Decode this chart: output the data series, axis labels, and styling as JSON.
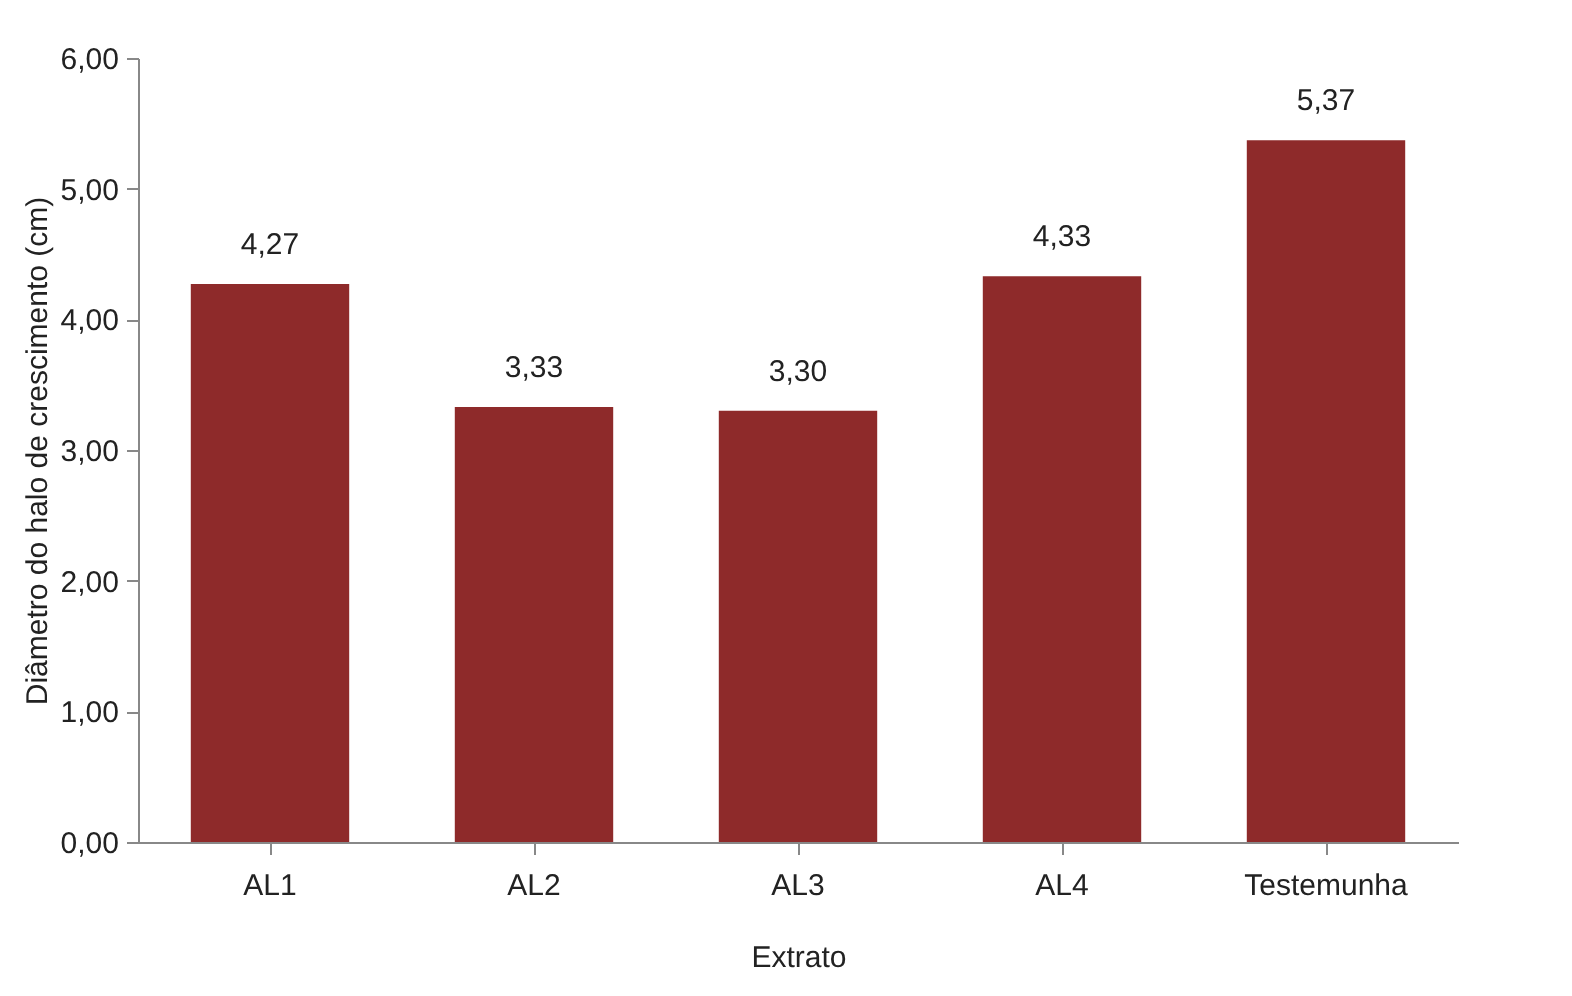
{
  "chart_data": {
    "type": "bar",
    "xlabel": "Extrato",
    "ylabel": "Diâmetro do halo de crescimento (cm)",
    "categories": [
      "AL1",
      "AL2",
      "AL3",
      "AL4",
      "Testemunha"
    ],
    "values": [
      4.27,
      3.33,
      3.3,
      4.33,
      5.37
    ],
    "value_labels": [
      "4,27",
      "3,33",
      "3,30",
      "4,33",
      "5,37"
    ],
    "color": "#8e2a2a",
    "ylim": [
      0,
      6
    ],
    "yticks": [
      {
        "value": 0,
        "label": "0,00"
      },
      {
        "value": 1,
        "label": "1,00"
      },
      {
        "value": 2,
        "label": "2,00"
      },
      {
        "value": 3,
        "label": "3,00"
      },
      {
        "value": 4,
        "label": "4,00"
      },
      {
        "value": 5,
        "label": "5,00"
      },
      {
        "value": 6,
        "label": "6,00"
      }
    ],
    "grid": false
  }
}
